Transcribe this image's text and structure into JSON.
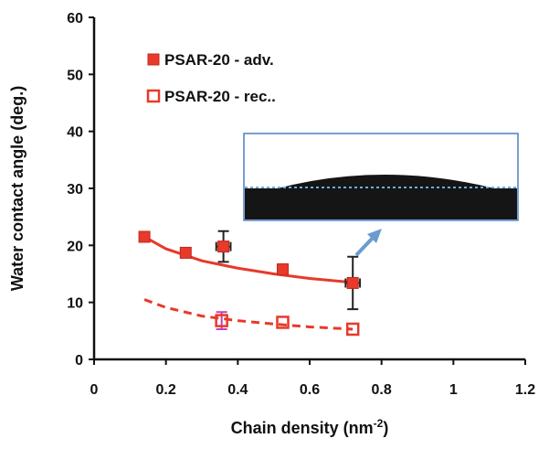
{
  "chart_data": {
    "type": "scatter",
    "xlabel_parts": [
      "Chain density (nm",
      "-2",
      ")"
    ],
    "ylabel": "Water contact angle (deg.)",
    "xlim": [
      0,
      1.2
    ],
    "xticks": [
      0,
      0.2,
      0.4,
      0.6,
      0.8,
      1,
      1.2
    ],
    "ylim": [
      0,
      60
    ],
    "yticks": [
      0,
      10,
      20,
      30,
      40,
      50,
      60
    ],
    "grid": false,
    "legend": "upper left",
    "series": [
      {
        "name": "PSAR-20 - adv.",
        "color": "#e8392a",
        "marker": "filled",
        "x": [
          0.14,
          0.255,
          0.36,
          0.525,
          0.72
        ],
        "values": [
          21.5,
          18.7,
          19.8,
          15.8,
          13.4
        ],
        "y_errors": [
          null,
          null,
          2.7,
          null,
          4.6
        ],
        "x_errors": [
          null,
          null,
          0.02,
          null,
          0.02
        ],
        "error_color": "#222222"
      },
      {
        "name": "PSAR-20 - rec..",
        "color": "#e8392a",
        "marker": "open",
        "x": [
          0.355,
          0.525,
          0.72
        ],
        "values": [
          6.8,
          6.5,
          5.3
        ],
        "y_errors": [
          1.5,
          null,
          null
        ],
        "x_errors": [
          null,
          null,
          null
        ],
        "error_color": "#c040c0"
      }
    ],
    "fit_lines": [
      {
        "color": "#e8392a",
        "dash": false,
        "x": [
          0.14,
          0.2,
          0.3,
          0.4,
          0.5,
          0.6,
          0.72
        ],
        "values": [
          21.5,
          19.4,
          17.3,
          16.0,
          15.0,
          14.2,
          13.5
        ]
      },
      {
        "color": "#e8392a",
        "dash": true,
        "x": [
          0.14,
          0.2,
          0.3,
          0.4,
          0.5,
          0.6,
          0.72
        ],
        "values": [
          10.5,
          9.1,
          7.6,
          6.8,
          6.2,
          5.7,
          5.3
        ]
      }
    ]
  }
}
